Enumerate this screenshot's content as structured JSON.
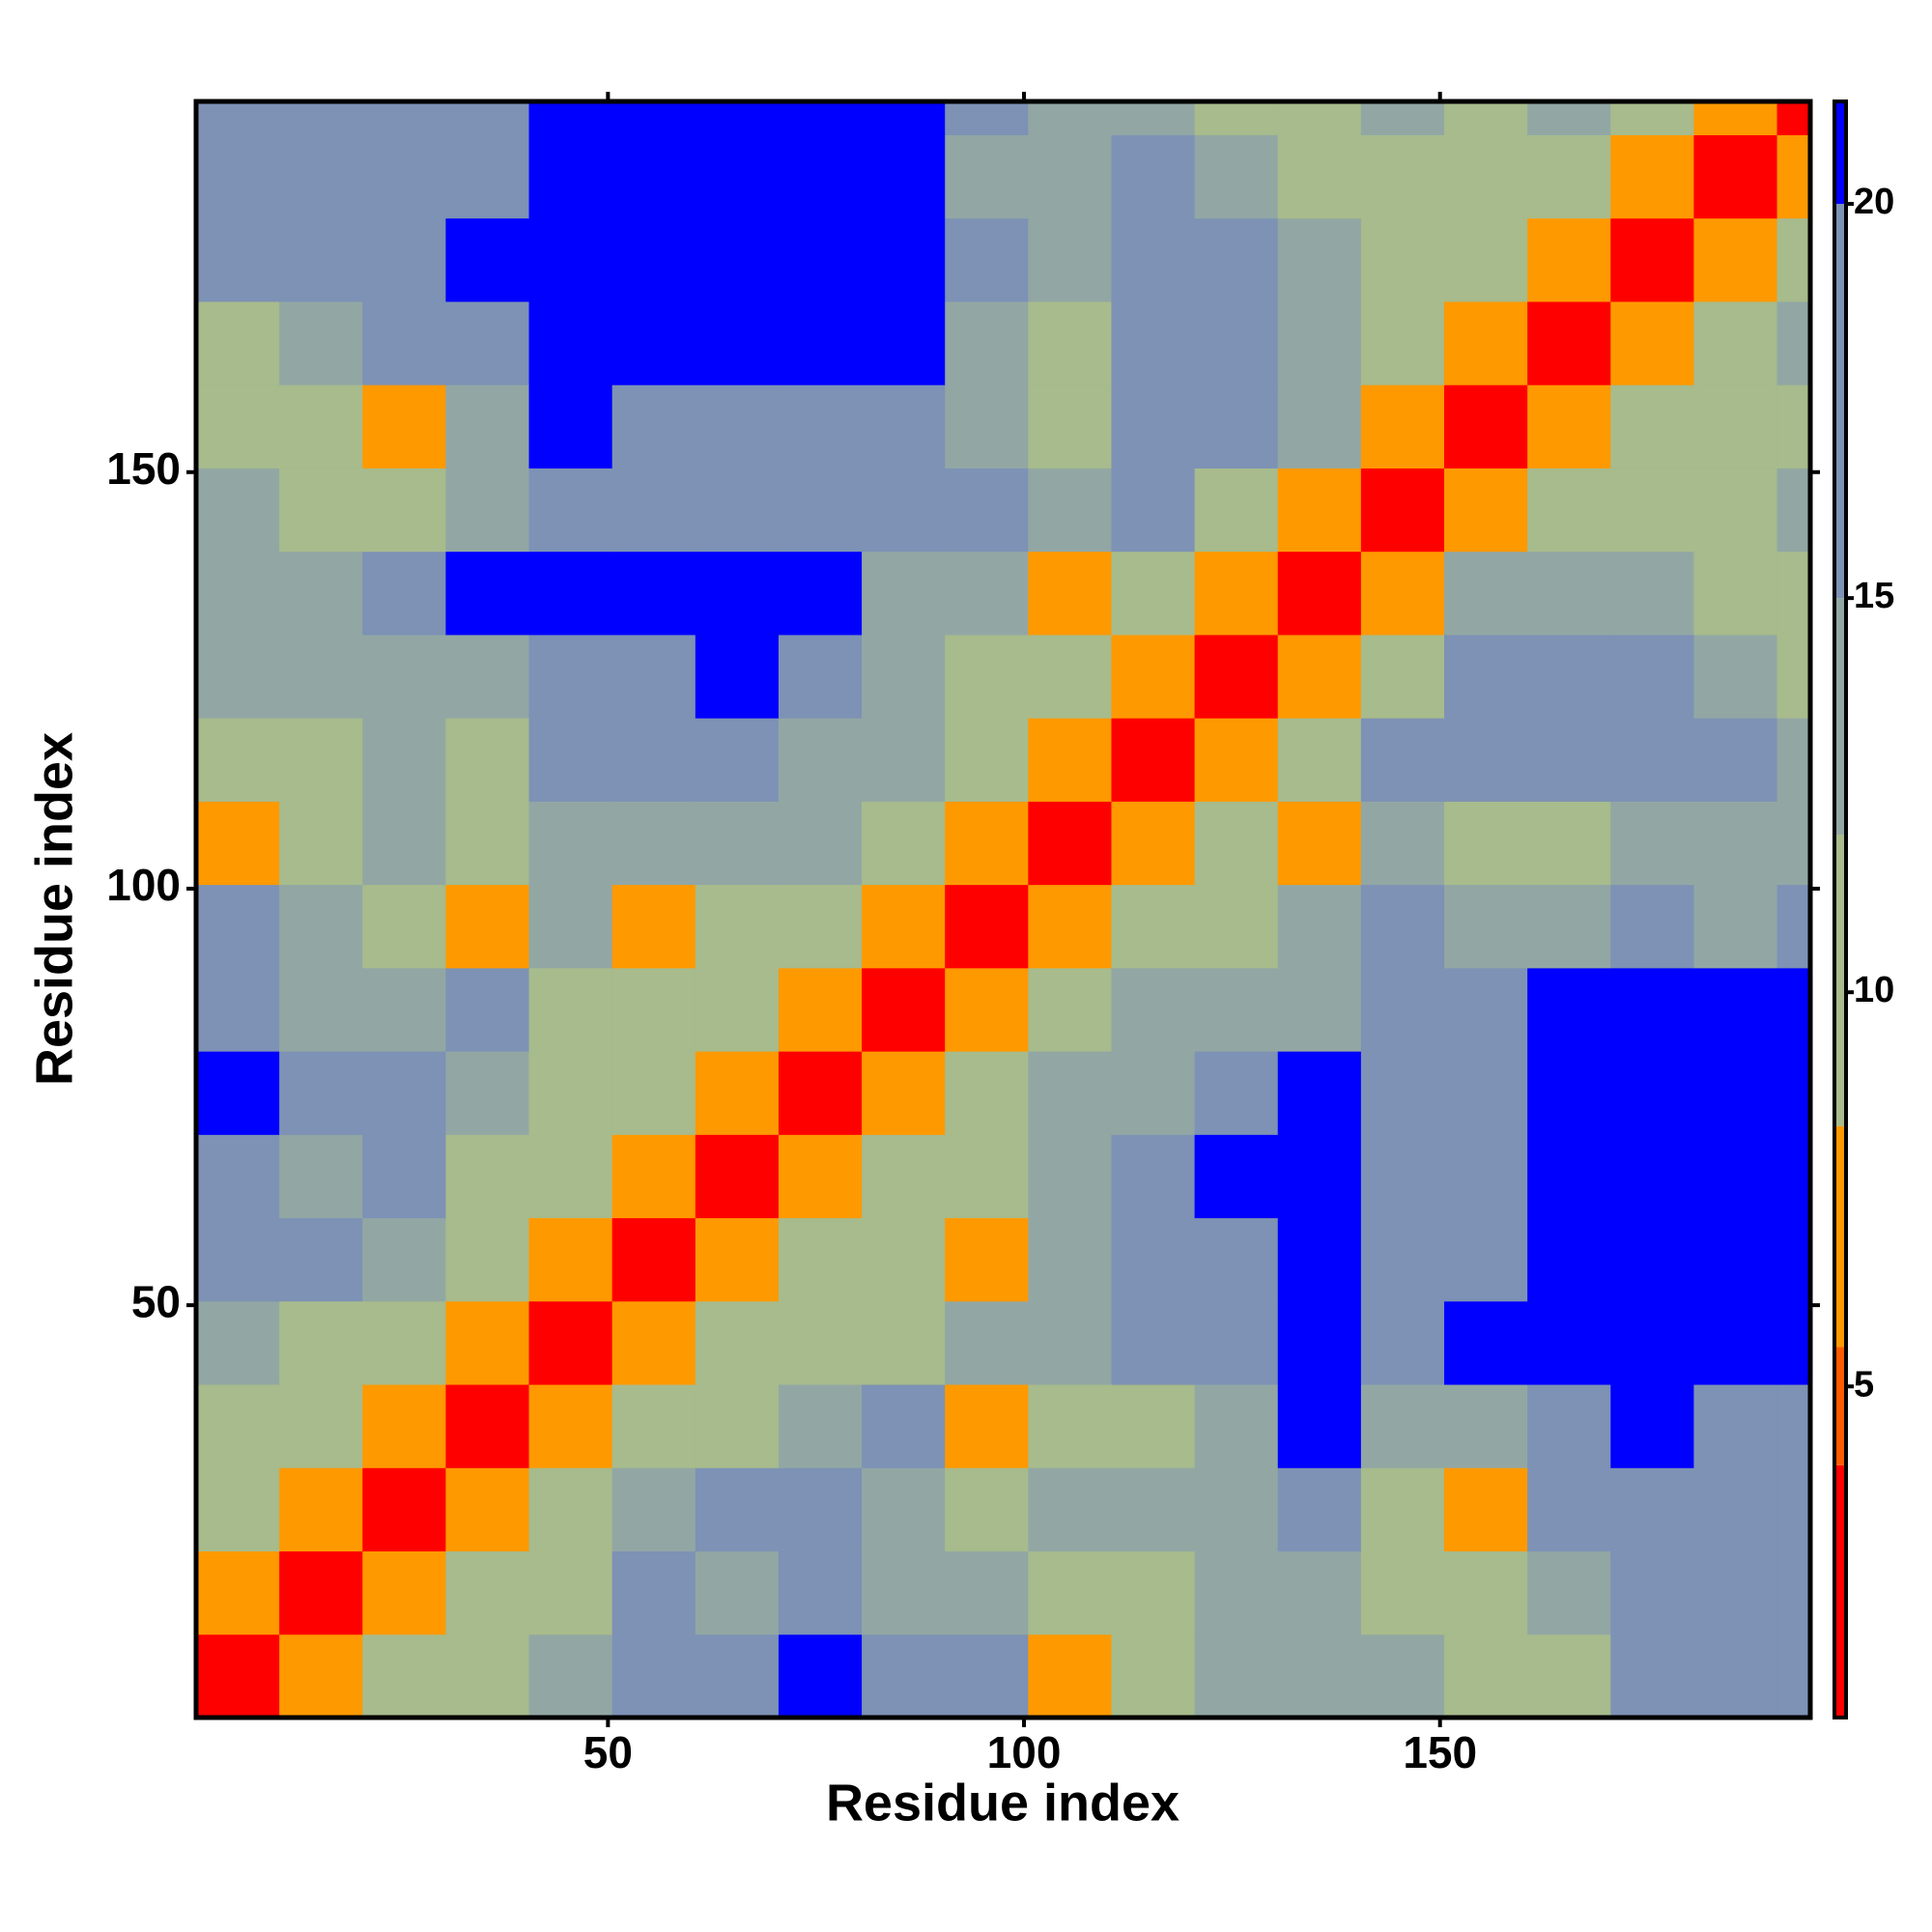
{
  "chart_data": {
    "type": "heatmap",
    "x_label": "Residue index",
    "y_label": "Residue index",
    "xlim": [
      0.5,
      194.5
    ],
    "ylim": [
      0.5,
      194.5
    ],
    "xticks": [
      50,
      100,
      150
    ],
    "yticks": [
      50,
      100,
      150
    ],
    "x_edges": [
      0.5,
      10.5,
      20.5,
      30.5,
      40.5,
      50.5,
      60.5,
      70.5,
      80.5,
      90.5,
      100.5,
      110.5,
      120.5,
      130.5,
      140.5,
      150.5,
      160.5,
      170.5,
      180.5,
      190.5,
      194.5
    ],
    "y_edges": [
      0.5,
      10.5,
      20.5,
      30.5,
      40.5,
      50.5,
      60.5,
      70.5,
      80.5,
      90.5,
      100.5,
      110.5,
      120.5,
      130.5,
      140.5,
      150.5,
      160.5,
      170.5,
      180.5,
      190.5,
      194.5
    ],
    "z": [
      [
        2,
        6,
        11,
        9,
        12,
        17,
        17,
        21,
        17,
        15,
        7,
        9,
        13,
        12,
        12,
        11,
        9,
        16,
        16,
        17
      ],
      [
        6,
        2,
        6,
        9,
        10,
        15,
        14,
        18,
        14,
        12,
        11,
        11,
        12,
        13,
        10,
        9,
        13,
        17,
        17,
        17
      ],
      [
        11,
        6,
        2,
        6,
        10,
        14,
        15,
        17,
        13,
        11,
        12,
        12,
        14,
        18,
        10,
        8,
        15,
        18,
        18,
        18
      ],
      [
        9,
        9,
        6,
        2,
        6,
        11,
        11,
        12,
        15,
        8,
        10,
        10,
        14,
        20,
        14,
        12,
        16,
        20,
        19,
        19
      ],
      [
        12,
        10,
        10,
        6,
        2,
        6,
        9,
        10,
        9,
        12,
        14,
        16,
        19,
        21,
        18,
        21,
        21,
        21,
        21,
        20
      ],
      [
        17,
        15,
        14,
        11,
        6,
        2,
        6,
        10,
        10,
        8,
        12,
        17,
        18,
        21,
        18,
        19,
        21,
        21,
        21,
        21
      ],
      [
        17,
        14,
        15,
        11,
        9,
        6,
        2,
        6,
        10,
        11,
        13,
        17,
        21,
        21,
        19,
        19,
        21,
        21,
        21,
        21
      ],
      [
        21,
        18,
        17,
        12,
        10,
        10,
        6,
        2,
        6,
        9,
        12,
        14,
        16,
        21,
        17,
        19,
        21,
        21,
        21,
        21
      ],
      [
        17,
        14,
        13,
        15,
        9,
        10,
        10,
        6,
        2,
        6,
        10,
        12,
        13,
        14,
        17,
        19,
        21,
        21,
        21,
        21
      ],
      [
        15,
        12,
        11,
        8,
        12,
        8,
        11,
        9,
        6,
        2,
        6,
        9,
        11,
        12,
        15,
        14,
        14,
        18,
        12,
        15
      ],
      [
        7,
        11,
        12,
        10,
        14,
        12,
        13,
        12,
        10,
        6,
        2,
        6,
        10,
        8,
        13,
        10,
        11,
        12,
        14,
        13
      ],
      [
        9,
        11,
        12,
        10,
        16,
        17,
        17,
        14,
        12,
        9,
        6,
        2,
        6,
        10,
        16,
        17,
        18,
        18,
        17,
        12
      ],
      [
        13,
        12,
        14,
        14,
        19,
        18,
        21,
        16,
        13,
        11,
        10,
        6,
        2,
        6,
        11,
        19,
        16,
        17,
        12,
        9
      ],
      [
        12,
        13,
        18,
        20,
        21,
        21,
        21,
        21,
        14,
        12,
        8,
        10,
        6,
        2,
        6,
        12,
        12,
        12,
        9,
        10
      ],
      [
        12,
        10,
        10,
        14,
        18,
        18,
        19,
        17,
        17,
        15,
        13,
        16,
        11,
        6,
        2,
        6,
        10,
        11,
        11,
        12
      ],
      [
        11,
        9,
        8,
        12,
        21,
        19,
        19,
        19,
        19,
        14,
        10,
        17,
        19,
        12,
        6,
        2,
        6,
        11,
        10,
        11
      ],
      [
        9,
        13,
        15,
        16,
        21,
        21,
        21,
        21,
        21,
        14,
        11,
        18,
        16,
        12,
        10,
        6,
        2,
        6,
        11,
        12
      ],
      [
        16,
        17,
        18,
        20,
        21,
        21,
        21,
        21,
        21,
        18,
        12,
        18,
        17,
        12,
        11,
        11,
        6,
        2,
        6,
        11
      ],
      [
        16,
        17,
        18,
        19,
        21,
        21,
        21,
        21,
        21,
        12,
        14,
        17,
        12,
        9,
        11,
        10,
        11,
        6,
        2,
        6
      ],
      [
        17,
        17,
        18,
        19,
        20,
        21,
        21,
        21,
        21,
        15,
        13,
        12,
        9,
        10,
        12,
        11,
        12,
        11,
        6,
        2
      ]
    ],
    "colorbar": {
      "lim": [
        0.8,
        21.3
      ],
      "ticks": [
        5,
        10,
        15,
        20
      ],
      "scale": [
        {
          "value": 0.8,
          "color": "#ff0000"
        },
        {
          "value": 4,
          "color": "#ff5a00"
        },
        {
          "value": 5.5,
          "color": "#ff9900"
        },
        {
          "value": 8.3,
          "color": "#a7bb8c"
        },
        {
          "value": 12,
          "color": "#92a7a4"
        },
        {
          "value": 15,
          "color": "#7d92b5"
        },
        {
          "value": 20,
          "color": "#0000ff"
        }
      ]
    }
  }
}
